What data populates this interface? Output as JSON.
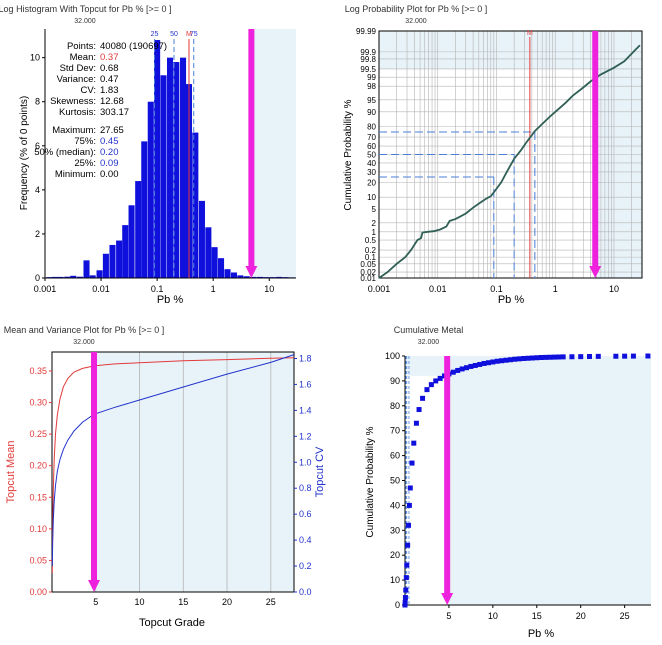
{
  "colors": {
    "bar_blue": "#1010dd",
    "topcut_magenta": "#ee22dd",
    "shade_blue": "#e8f3f9",
    "mean_red": "#e23a3a",
    "cv_blue": "#2233cc",
    "prob_line": "#2f5f55",
    "marker_blue": "#4a7fd8",
    "grid": "#b4b4b4"
  },
  "chart_data": [
    {
      "type": "bar",
      "title": "Log Histogram With Topcut for Pb % [>= 0 ]",
      "subtitle": "32.000",
      "xlabel": "Pb %",
      "ylabel": "Frequency (% of 0 points)",
      "xscale": "log",
      "xlim": [
        0.001,
        30
      ],
      "ylim": [
        0,
        11.3
      ],
      "xticks": [
        0.001,
        0.01,
        0.1,
        1,
        10
      ],
      "xtick_labels": [
        "0.001",
        "0.01",
        "0.1",
        "1",
        "10"
      ],
      "yticks": [
        0,
        2,
        4,
        6,
        8,
        10
      ],
      "ytick_labels": [
        "0",
        "2",
        "4",
        "6",
        "8",
        "10"
      ],
      "grid": false,
      "topcut": 4.8,
      "bar_centers": [
        0.0012,
        0.0015,
        0.0019,
        0.0025,
        0.0032,
        0.0042,
        0.0055,
        0.0071,
        0.0094,
        0.0122,
        0.016,
        0.021,
        0.027,
        0.035,
        0.046,
        0.059,
        0.077,
        0.1,
        0.13,
        0.17,
        0.22,
        0.29,
        0.37,
        0.48,
        0.63,
        0.82,
        1.06,
        1.38,
        1.8,
        2.35,
        3.05,
        3.97,
        5.2,
        6.8,
        8.8,
        11.5,
        15,
        19.5,
        25.3
      ],
      "values": [
        0.04,
        0.05,
        0.05,
        0.06,
        0.1,
        0.06,
        0.8,
        0.12,
        0.35,
        1.1,
        1.5,
        1.7,
        2.4,
        3.3,
        4.4,
        6.2,
        8.0,
        10.8,
        9.2,
        10.0,
        9.8,
        10.0,
        8.8,
        6.6,
        3.5,
        2.3,
        1.4,
        0.9,
        0.4,
        0.25,
        0.12,
        0.08,
        0.05,
        0.05,
        0.04,
        0.04,
        0.05,
        0.04,
        0.03
      ],
      "markers": [
        {
          "label": "25",
          "value": 0.09
        },
        {
          "label": "50",
          "value": 0.2
        },
        {
          "label": "M",
          "value": 0.37
        },
        {
          "label": "75",
          "value": 0.45
        }
      ],
      "stats": [
        {
          "label": "Points:",
          "value": "40080 (190697)",
          "color": "#000000"
        },
        {
          "label": "Mean:",
          "value": "0.37",
          "color": "#e23a3a"
        },
        {
          "label": "Std Dev:",
          "value": "0.68",
          "color": "#000000"
        },
        {
          "label": "Variance:",
          "value": "0.47",
          "color": "#000000"
        },
        {
          "label": "CV:",
          "value": "1.83",
          "color": "#000000"
        },
        {
          "label": "Skewness:",
          "value": "12.68",
          "color": "#000000"
        },
        {
          "label": "Kurtosis:",
          "value": "303.17",
          "color": "#000000"
        },
        {
          "label": "Maximum:",
          "value": "27.65",
          "color": "#000000"
        },
        {
          "label": "75%:",
          "value": "0.45",
          "color": "#2233cc"
        },
        {
          "label": "50% (median):",
          "value": "0.20",
          "color": "#2233cc"
        },
        {
          "label": "25%:",
          "value": "0.09",
          "color": "#2233cc"
        },
        {
          "label": "Minimum:",
          "value": "0.00",
          "color": "#000000"
        }
      ]
    },
    {
      "type": "line",
      "title": "Log Probability Plot for Pb % [>= 0 ]",
      "subtitle": "32.000",
      "xlabel": "Pb %",
      "ylabel": "Cumulative Probability %",
      "xscale": "log",
      "yscale": "probability",
      "xlim": [
        0.001,
        30
      ],
      "xticks": [
        0.001,
        0.01,
        0.1,
        1,
        10
      ],
      "xtick_labels": [
        "0.001",
        "0.01",
        "0.1",
        "1",
        "10"
      ],
      "yticks": [
        0.01,
        0.02,
        0.05,
        0.1,
        0.2,
        0.5,
        1,
        2,
        5,
        10,
        20,
        30,
        40,
        50,
        60,
        70,
        80,
        90,
        95,
        98,
        99,
        99.5,
        99.8,
        99.9,
        99.99
      ],
      "ytick_labels": [
        "0.01",
        "0.02",
        "0.05",
        "0.1",
        "0.2",
        "0.5",
        "1",
        "2",
        "5",
        "10",
        "20",
        "30",
        "40",
        "50",
        "60",
        "70",
        "80",
        "90",
        "95",
        "98",
        "99",
        "99.5",
        "99.8",
        "99.9",
        "99.99"
      ],
      "grid": true,
      "topcut": 4.8,
      "mean_label": "M",
      "mean": 0.37,
      "quantile_lines": [
        {
          "p": 25,
          "value": 0.09
        },
        {
          "p": 50,
          "value": 0.2
        },
        {
          "p": 75,
          "value": 0.45
        }
      ],
      "x": [
        0.001,
        0.0014,
        0.002,
        0.0028,
        0.0035,
        0.0045,
        0.0052,
        0.0055,
        0.0068,
        0.0085,
        0.011,
        0.014,
        0.016,
        0.02,
        0.025,
        0.03,
        0.04,
        0.05,
        0.065,
        0.08,
        0.095,
        0.12,
        0.15,
        0.2,
        0.26,
        0.32,
        0.4,
        0.45,
        0.6,
        0.8,
        1.0,
        1.5,
        2.0,
        3.0,
        4.0,
        6.0,
        10,
        15,
        27.65
      ],
      "y": [
        0.01,
        0.02,
        0.05,
        0.1,
        0.2,
        0.5,
        0.6,
        0.95,
        1.0,
        1.05,
        1.2,
        1.5,
        2.3,
        2.6,
        3.2,
        3.8,
        5.5,
        7.0,
        9.0,
        10.5,
        14.0,
        20.0,
        30.0,
        45.0,
        55.0,
        64.0,
        72.0,
        76.0,
        82.0,
        87.0,
        90.0,
        94.0,
        96.2,
        97.8,
        98.6,
        99.2,
        99.55,
        99.75,
        99.95
      ]
    },
    {
      "type": "line",
      "title": "Mean and Variance Plot for Pb % [>= 0 ]",
      "subtitle": "32.000",
      "xlabel": "Topcut Grade",
      "ylabel_left": "Topcut Mean",
      "ylabel_right": "Topcut CV",
      "xlim": [
        0,
        27.65
      ],
      "ylim_left": [
        0,
        0.38
      ],
      "ylim_right": [
        0,
        1.85
      ],
      "xticks": [
        5,
        10,
        15,
        20,
        25
      ],
      "xtick_labels": [
        "5",
        "10",
        "15",
        "20",
        "25"
      ],
      "yticks_left": [
        0.0,
        0.05,
        0.1,
        0.15,
        0.2,
        0.25,
        0.3,
        0.35
      ],
      "ytick_left_labels": [
        "0.00",
        "0.05",
        "0.10",
        "0.15",
        "0.20",
        "0.25",
        "0.30",
        "0.35"
      ],
      "yticks_right": [
        0.0,
        0.2,
        0.4,
        0.6,
        0.8,
        1.0,
        1.2,
        1.4,
        1.6,
        1.8
      ],
      "ytick_right_labels": [
        "0.0",
        "0.2",
        "0.4",
        "0.6",
        "0.8",
        "1.0",
        "1.2",
        "1.4",
        "1.6",
        "1.8"
      ],
      "grid": "vertical",
      "topcut": 4.8,
      "series": [
        {
          "color": "#e23a3a",
          "axis": "left",
          "x": [
            0.03,
            0.08,
            0.15,
            0.25,
            0.4,
            0.6,
            0.9,
            1.3,
            1.8,
            2.5,
            3.5,
            4.8,
            7,
            10,
            15,
            20,
            25,
            27.65
          ],
          "values": [
            0.03,
            0.1,
            0.16,
            0.21,
            0.25,
            0.28,
            0.305,
            0.325,
            0.338,
            0.348,
            0.354,
            0.358,
            0.361,
            0.363,
            0.366,
            0.368,
            0.37,
            0.371
          ]
        },
        {
          "color": "#2233cc",
          "axis": "right",
          "x": [
            0.03,
            0.08,
            0.15,
            0.25,
            0.4,
            0.6,
            0.9,
            1.3,
            1.8,
            2.5,
            3.5,
            4.8,
            7,
            10,
            15,
            20,
            25,
            27.65
          ],
          "values": [
            0.2,
            0.4,
            0.55,
            0.7,
            0.82,
            0.93,
            1.02,
            1.1,
            1.17,
            1.24,
            1.31,
            1.37,
            1.42,
            1.48,
            1.58,
            1.68,
            1.77,
            1.83
          ]
        }
      ]
    },
    {
      "type": "scatter",
      "title": "Cumulative Metal",
      "subtitle": "32.000",
      "xlabel": "Pb %",
      "ylabel": "Cumulative Probability %",
      "xlim": [
        0,
        28
      ],
      "ylim": [
        0,
        100
      ],
      "xticks": [
        5,
        10,
        15,
        20,
        25
      ],
      "xtick_labels": [
        "5",
        "10",
        "15",
        "20",
        "25"
      ],
      "yticks": [
        0,
        10,
        20,
        30,
        40,
        50,
        60,
        70,
        80,
        90,
        100
      ],
      "ytick_labels": [
        "0",
        "10",
        "20",
        "30",
        "40",
        "50",
        "60",
        "70",
        "80",
        "90",
        "100"
      ],
      "grid": false,
      "topcut": 4.8,
      "quantile_values": [
        0.09,
        0.2,
        0.45
      ],
      "x": [
        0.0,
        0.02,
        0.05,
        0.09,
        0.15,
        0.2,
        0.3,
        0.4,
        0.5,
        0.6,
        0.8,
        1.0,
        1.3,
        1.6,
        2.0,
        2.5,
        3.0,
        3.5,
        4.0,
        4.5,
        5.0,
        5.5,
        6.0,
        6.5,
        7.0,
        7.5,
        8.0,
        8.5,
        9.0,
        9.5,
        10.0,
        10.5,
        11.0,
        11.5,
        12.0,
        12.5,
        13.0,
        13.5,
        14.0,
        14.5,
        15.0,
        15.5,
        16.0,
        16.5,
        17.0,
        17.5,
        18.0,
        19.0,
        20.0,
        21.0,
        22.0,
        24.0,
        25.0,
        26.0,
        27.65
      ],
      "values": [
        0.0,
        1.0,
        3.0,
        6.0,
        11.0,
        16.0,
        24.0,
        32.0,
        40.0,
        47.0,
        57.0,
        65.0,
        73.0,
        78.5,
        83.0,
        86.5,
        88.5,
        90.0,
        91.0,
        92.0,
        92.8,
        93.5,
        94.2,
        94.8,
        95.3,
        95.8,
        96.2,
        96.6,
        97.0,
        97.3,
        97.6,
        97.9,
        98.1,
        98.3,
        98.5,
        98.7,
        98.85,
        99.0,
        99.1,
        99.2,
        99.3,
        99.4,
        99.45,
        99.5,
        99.55,
        99.6,
        99.65,
        99.7,
        99.75,
        99.8,
        99.85,
        99.9,
        99.93,
        99.96,
        100.0
      ]
    }
  ]
}
